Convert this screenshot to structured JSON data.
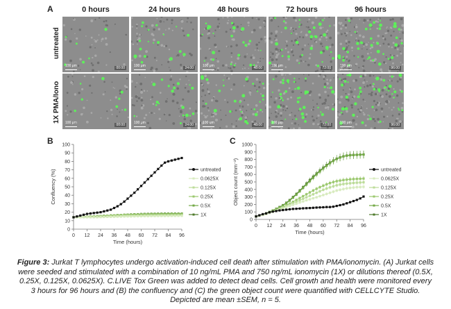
{
  "panelA": {
    "letter": "A",
    "timepoints": [
      "0 hours",
      "24 hours",
      "48 hours",
      "72 hours",
      "96 hours"
    ],
    "time_stamps": [
      "00:00",
      "24:00",
      "48:00",
      "72:00",
      "96:00"
    ],
    "conditions": [
      "untreated",
      "1X PMA/Iono"
    ],
    "scale_bar": "100 μm",
    "green_cell_counts": [
      [
        6,
        18,
        22,
        32,
        40
      ],
      [
        8,
        18,
        26,
        38,
        44
      ]
    ]
  },
  "panelB": {
    "letter": "B",
    "chart_data": {
      "type": "line",
      "xlabel": "Time (hours)",
      "ylabel": "Confluency (%)",
      "xlim": [
        0,
        96
      ],
      "ylim": [
        0,
        100
      ],
      "xticks": [
        0,
        12,
        24,
        36,
        48,
        60,
        72,
        84,
        96
      ],
      "yticks": [
        0,
        10,
        20,
        30,
        40,
        50,
        60,
        70,
        80,
        90,
        100
      ],
      "legend_position": "right",
      "x": [
        0,
        3,
        6,
        9,
        12,
        15,
        18,
        21,
        24,
        27,
        30,
        33,
        36,
        39,
        42,
        45,
        48,
        51,
        54,
        57,
        60,
        63,
        66,
        69,
        72,
        75,
        78,
        81,
        84,
        87,
        90,
        93,
        96
      ],
      "series": [
        {
          "name": "untreated",
          "color": "#111111",
          "values": [
            14,
            15,
            16,
            17,
            18,
            18.5,
            19,
            19.5,
            20,
            21,
            22,
            23,
            25,
            27,
            29.5,
            32.5,
            36,
            39.5,
            43,
            47,
            51,
            55,
            59,
            63,
            67,
            71,
            75,
            78.5,
            80,
            81,
            82,
            83,
            84
          ]
        },
        {
          "name": "0.0625X",
          "color": "#d8ebbf",
          "values": [
            14,
            14,
            14,
            14,
            14,
            14,
            14,
            14,
            14.2,
            14.3,
            14.4,
            14.5,
            14.6,
            14.7,
            14.8,
            14.9,
            15,
            15,
            15.1,
            15.2,
            15.2,
            15.3,
            15.3,
            15.4,
            15.4,
            15.5,
            15.5,
            15.5,
            15.6,
            15.6,
            15.6,
            15.7,
            15.7
          ]
        },
        {
          "name": "0.125X",
          "color": "#bcdc99",
          "values": [
            14,
            14,
            14.1,
            14.2,
            14.3,
            14.4,
            14.5,
            14.6,
            14.7,
            14.8,
            14.9,
            15,
            15.1,
            15.2,
            15.3,
            15.4,
            15.5,
            15.6,
            15.7,
            15.8,
            15.9,
            16,
            16,
            16.1,
            16.1,
            16.2,
            16.2,
            16.3,
            16.3,
            16.3,
            16.4,
            16.4,
            16.4
          ]
        },
        {
          "name": "0.25X",
          "color": "#9bc86e",
          "values": [
            14,
            14.1,
            14.2,
            14.4,
            14.6,
            14.8,
            15,
            15.2,
            15.4,
            15.6,
            15.8,
            16,
            16.2,
            16.4,
            16.6,
            16.7,
            16.8,
            16.9,
            17,
            17.1,
            17.2,
            17.2,
            17.3,
            17.3,
            17.3,
            17.4,
            17.4,
            17.4,
            17.4,
            17.5,
            17.5,
            17.5,
            17.5
          ]
        },
        {
          "name": "0.5X",
          "color": "#74a947",
          "values": [
            14,
            14.1,
            14.3,
            14.5,
            14.7,
            14.9,
            15.1,
            15.3,
            15.5,
            15.7,
            15.9,
            16.1,
            16.3,
            16.5,
            16.7,
            16.9,
            17.1,
            17.2,
            17.4,
            17.5,
            17.6,
            17.7,
            17.8,
            17.9,
            18,
            18,
            18.1,
            18.1,
            18.2,
            18.2,
            18.2,
            18.2,
            18.2
          ]
        },
        {
          "name": "1X",
          "color": "#4e7a2b",
          "values": [
            14,
            14.1,
            14.3,
            14.5,
            14.7,
            14.9,
            15.1,
            15.3,
            15.5,
            15.7,
            15.9,
            16.1,
            16.3,
            16.5,
            16.7,
            16.9,
            17.1,
            17.3,
            17.5,
            17.6,
            17.8,
            17.9,
            18,
            18.1,
            18.1,
            18.2,
            18.2,
            18.3,
            18.3,
            18.3,
            18.3,
            18.3,
            18.3
          ]
        }
      ]
    }
  },
  "panelC": {
    "letter": "C",
    "chart_data": {
      "type": "line",
      "xlabel": "Time (hours)",
      "ylabel": "Object count (mm⁻²)",
      "xlim": [
        0,
        96
      ],
      "ylim": [
        0,
        1000
      ],
      "xticks": [
        0,
        12,
        24,
        36,
        48,
        60,
        72,
        84,
        96
      ],
      "yticks": [
        0,
        100,
        200,
        300,
        400,
        500,
        600,
        700,
        800,
        900,
        1000
      ],
      "legend_position": "right",
      "error_bars": "±SEM",
      "x": [
        0,
        3,
        6,
        9,
        12,
        15,
        18,
        21,
        24,
        27,
        30,
        33,
        36,
        39,
        42,
        45,
        48,
        51,
        54,
        57,
        60,
        63,
        66,
        69,
        72,
        75,
        78,
        81,
        84,
        87,
        90,
        93,
        96
      ],
      "series": [
        {
          "name": "untreated",
          "color": "#111111",
          "values": [
            40,
            55,
            70,
            80,
            95,
            105,
            112,
            120,
            125,
            130,
            135,
            140,
            142,
            145,
            148,
            150,
            152,
            155,
            158,
            160,
            162,
            165,
            165,
            170,
            180,
            190,
            200,
            215,
            230,
            245,
            260,
            280,
            305
          ]
        },
        {
          "name": "0.0625X",
          "color": "#d8ebbf",
          "values": [
            40,
            48,
            58,
            70,
            85,
            100,
            115,
            130,
            145,
            162,
            180,
            195,
            210,
            225,
            240,
            255,
            268,
            282,
            295,
            310,
            325,
            340,
            355,
            370,
            385,
            395,
            405,
            415,
            420,
            425,
            430,
            432,
            435
          ]
        },
        {
          "name": "0.125X",
          "color": "#bcdc99",
          "values": [
            40,
            50,
            62,
            75,
            90,
            108,
            125,
            140,
            158,
            178,
            198,
            215,
            235,
            255,
            275,
            295,
            315,
            335,
            355,
            375,
            395,
            412,
            428,
            442,
            455,
            465,
            472,
            478,
            482,
            486,
            490,
            492,
            495
          ]
        },
        {
          "name": "0.25X",
          "color": "#9bc86e",
          "values": [
            40,
            50,
            62,
            76,
            92,
            110,
            128,
            146,
            165,
            188,
            210,
            235,
            260,
            285,
            310,
            335,
            360,
            385,
            408,
            430,
            450,
            468,
            485,
            498,
            510,
            518,
            525,
            530,
            535,
            538,
            540,
            542,
            545
          ]
        },
        {
          "name": "0.5X",
          "color": "#74a947",
          "values": [
            40,
            52,
            65,
            80,
            98,
            118,
            138,
            160,
            185,
            215,
            250,
            290,
            330,
            375,
            420,
            465,
            510,
            555,
            600,
            640,
            680,
            715,
            750,
            780,
            805,
            825,
            840,
            850,
            855,
            858,
            860,
            862,
            865
          ]
        },
        {
          "name": "1X",
          "color": "#4e7a2b",
          "values": [
            40,
            52,
            66,
            82,
            100,
            120,
            142,
            165,
            190,
            222,
            258,
            298,
            340,
            385,
            430,
            478,
            525,
            570,
            612,
            652,
            690,
            725,
            758,
            785,
            810,
            828,
            842,
            852,
            858,
            860,
            862,
            864,
            866
          ]
        }
      ]
    }
  },
  "caption": {
    "label": "Figure 3:",
    "text": " Jurkat T lymphocytes undergo activation-induced cell death after stimulation with PMA/ionomycin. (A) Jurkat cells were seeded and stimulated with a combination of 10 ng/mL PMA and 750 ng/mL ionomycin (1X) or dilutions thereof (0.5X, 0.25X, 0.125X, 0.0625X). C.LIVE Tox Green was added to detect dead cells. Cell growth and health were monitored every 3 hours for 96 hours and (B) the confluency and (C) the green object count were quantified with CELLCYTE Studio. Depicted are mean ±SEM, n = 5."
  }
}
